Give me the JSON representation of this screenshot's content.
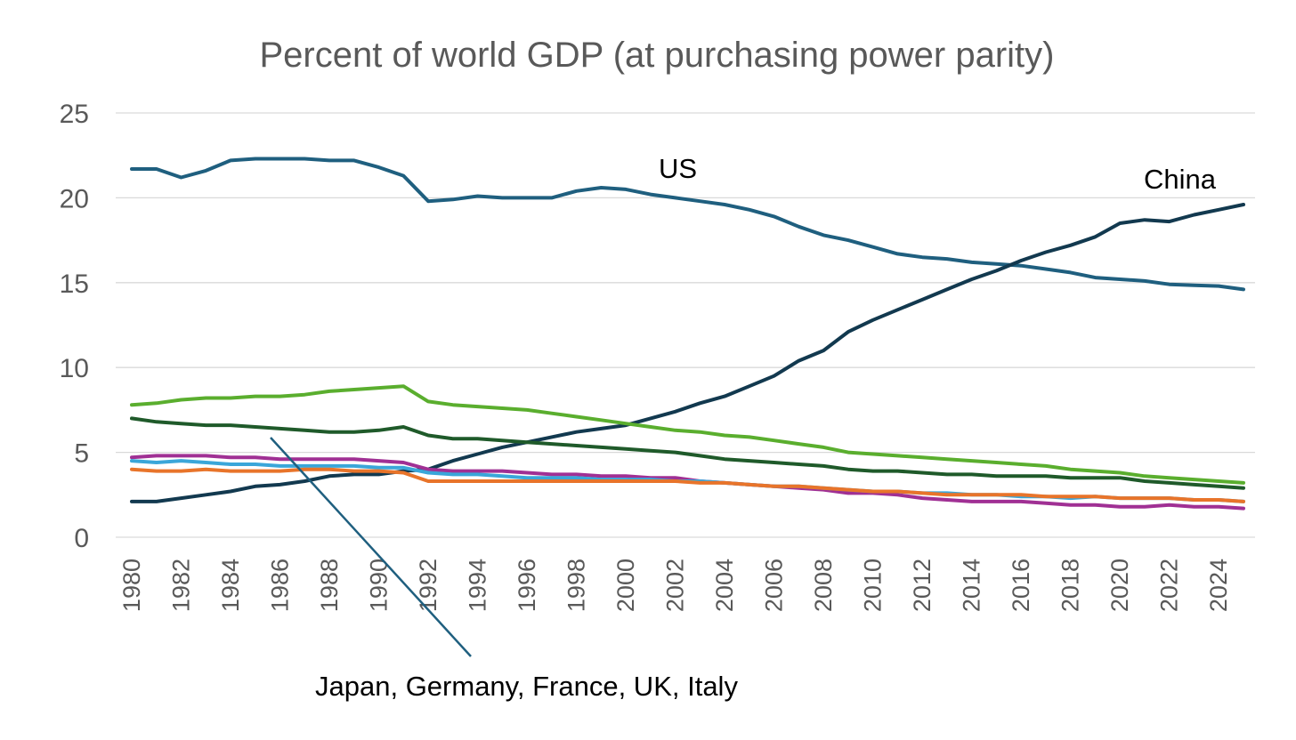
{
  "chart_data": {
    "type": "line",
    "title": "Percent of world GDP (at purchasing power parity)",
    "xlabel": "",
    "ylabel": "",
    "ylim": [
      0,
      25
    ],
    "xlim": [
      1980,
      2025
    ],
    "y_ticks": [
      0,
      5,
      10,
      15,
      20,
      25
    ],
    "x_tick_labels": [
      "1980",
      "1982",
      "1984",
      "1986",
      "1988",
      "1990",
      "1992",
      "1994",
      "1996",
      "1998",
      "2000",
      "2002",
      "2004",
      "2006",
      "2008",
      "2010",
      "2012",
      "2014",
      "2016",
      "2018",
      "2020",
      "2022",
      "2024"
    ],
    "grid": true,
    "legend": "none",
    "x": [
      1980,
      1981,
      1982,
      1983,
      1984,
      1985,
      1986,
      1987,
      1988,
      1989,
      1990,
      1991,
      1992,
      1993,
      1994,
      1995,
      1996,
      1997,
      1998,
      1999,
      2000,
      2001,
      2002,
      2003,
      2004,
      2005,
      2006,
      2007,
      2008,
      2009,
      2010,
      2011,
      2012,
      2013,
      2014,
      2015,
      2016,
      2017,
      2018,
      2019,
      2020,
      2021,
      2022,
      2023,
      2024,
      2025
    ],
    "series": [
      {
        "color": "#1f5f7f",
        "values": [
          21.7,
          21.7,
          21.2,
          21.6,
          22.2,
          22.3,
          22.3,
          22.3,
          22.2,
          22.2,
          21.8,
          21.3,
          19.8,
          19.9,
          20.1,
          20.0,
          20.0,
          20.0,
          20.4,
          20.6,
          20.5,
          20.2,
          20.0,
          19.8,
          19.6,
          19.3,
          18.9,
          18.3,
          17.8,
          17.5,
          17.1,
          16.7,
          16.5,
          16.4,
          16.2,
          16.1,
          16.0,
          15.8,
          15.6,
          15.3,
          15.2,
          15.1,
          14.9,
          14.85,
          14.8,
          14.6
        ]
      },
      {
        "color": "#12394f",
        "values": [
          2.1,
          2.1,
          2.3,
          2.5,
          2.7,
          3.0,
          3.1,
          3.3,
          3.6,
          3.7,
          3.7,
          3.9,
          4.0,
          4.5,
          4.9,
          5.3,
          5.6,
          5.9,
          6.2,
          6.4,
          6.6,
          7.0,
          7.4,
          7.9,
          8.3,
          8.9,
          9.5,
          10.4,
          11.0,
          12.1,
          12.8,
          13.4,
          14.0,
          14.6,
          15.2,
          15.7,
          16.3,
          16.8,
          17.2,
          17.7,
          18.5,
          18.7,
          18.6,
          19.0,
          19.3,
          19.6
        ]
      },
      {
        "color": "#5aae2e",
        "values": [
          7.8,
          7.9,
          8.1,
          8.2,
          8.2,
          8.3,
          8.3,
          8.4,
          8.6,
          8.7,
          8.8,
          8.9,
          8.0,
          7.8,
          7.7,
          7.6,
          7.5,
          7.3,
          7.1,
          6.9,
          6.7,
          6.5,
          6.3,
          6.2,
          6.0,
          5.9,
          5.7,
          5.5,
          5.3,
          5.0,
          4.9,
          4.8,
          4.7,
          4.6,
          4.5,
          4.4,
          4.3,
          4.2,
          4.0,
          3.9,
          3.8,
          3.6,
          3.5,
          3.4,
          3.3,
          3.2
        ]
      },
      {
        "color": "#1f5a2a",
        "values": [
          7.0,
          6.8,
          6.7,
          6.6,
          6.6,
          6.5,
          6.4,
          6.3,
          6.2,
          6.2,
          6.3,
          6.5,
          6.0,
          5.8,
          5.8,
          5.7,
          5.6,
          5.5,
          5.4,
          5.3,
          5.2,
          5.1,
          5.0,
          4.8,
          4.6,
          4.5,
          4.4,
          4.3,
          4.2,
          4.0,
          3.9,
          3.9,
          3.8,
          3.7,
          3.7,
          3.6,
          3.6,
          3.6,
          3.5,
          3.5,
          3.5,
          3.3,
          3.2,
          3.1,
          3.0,
          2.9
        ]
      },
      {
        "color": "#a03094",
        "values": [
          4.7,
          4.8,
          4.8,
          4.8,
          4.7,
          4.7,
          4.6,
          4.6,
          4.6,
          4.6,
          4.5,
          4.4,
          4.0,
          3.9,
          3.9,
          3.9,
          3.8,
          3.7,
          3.7,
          3.6,
          3.6,
          3.5,
          3.5,
          3.3,
          3.2,
          3.1,
          3.0,
          2.9,
          2.8,
          2.6,
          2.6,
          2.5,
          2.3,
          2.2,
          2.1,
          2.1,
          2.1,
          2.0,
          1.9,
          1.9,
          1.8,
          1.8,
          1.9,
          1.8,
          1.8,
          1.7
        ]
      },
      {
        "color": "#3aa6d9",
        "values": [
          4.5,
          4.4,
          4.5,
          4.4,
          4.3,
          4.3,
          4.2,
          4.2,
          4.2,
          4.2,
          4.1,
          4.1,
          3.8,
          3.7,
          3.7,
          3.6,
          3.5,
          3.5,
          3.5,
          3.4,
          3.4,
          3.4,
          3.3,
          3.3,
          3.2,
          3.1,
          3.0,
          3.0,
          2.9,
          2.8,
          2.7,
          2.7,
          2.6,
          2.6,
          2.5,
          2.5,
          2.4,
          2.4,
          2.3,
          2.4,
          2.3,
          2.3,
          2.3,
          2.2,
          2.2,
          2.1
        ]
      },
      {
        "color": "#e8742a",
        "values": [
          4.0,
          3.9,
          3.9,
          4.0,
          3.9,
          3.9,
          3.9,
          4.0,
          4.0,
          3.9,
          3.9,
          3.8,
          3.3,
          3.3,
          3.3,
          3.3,
          3.3,
          3.3,
          3.3,
          3.3,
          3.3,
          3.3,
          3.3,
          3.2,
          3.2,
          3.1,
          3.0,
          3.0,
          2.9,
          2.8,
          2.7,
          2.7,
          2.6,
          2.5,
          2.5,
          2.5,
          2.5,
          2.4,
          2.4,
          2.4,
          2.3,
          2.3,
          2.3,
          2.2,
          2.2,
          2.1
        ]
      }
    ],
    "annotations": {
      "us": "US",
      "china": "China",
      "others": "Japan, Germany, France, UK, Italy"
    }
  }
}
